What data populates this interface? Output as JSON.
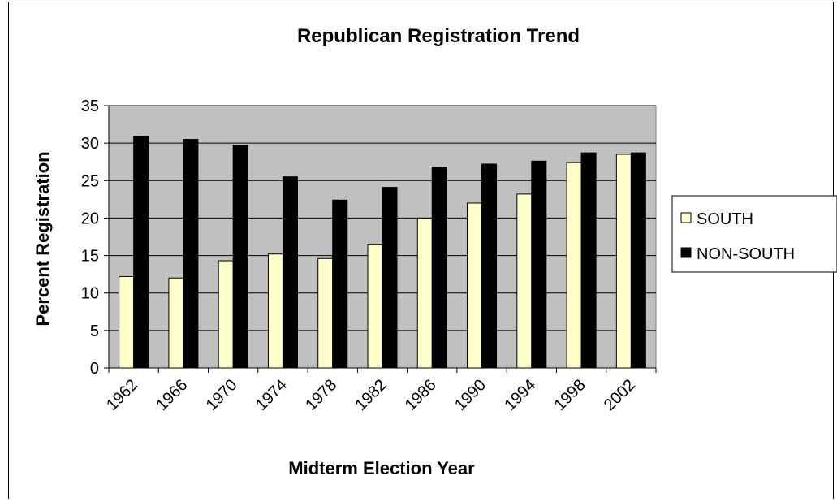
{
  "chart_data": {
    "type": "bar",
    "title": "Republican Registration Trend",
    "xlabel": "Midterm Election Year",
    "ylabel": "Percent Registration",
    "categories": [
      "1962",
      "1966",
      "1970",
      "1974",
      "1978",
      "1982",
      "1986",
      "1990",
      "1994",
      "1998",
      "2002"
    ],
    "series": [
      {
        "name": "SOUTH",
        "color": "#FFFFCC",
        "values": [
          12.2,
          12.0,
          14.3,
          15.2,
          14.6,
          16.5,
          20.0,
          22.0,
          23.2,
          27.4,
          28.5
        ]
      },
      {
        "name": "NON-SOUTH",
        "color": "#000000",
        "values": [
          30.9,
          30.5,
          29.7,
          25.5,
          22.4,
          24.1,
          26.8,
          27.2,
          27.6,
          28.7,
          28.7
        ]
      }
    ],
    "ylim": [
      0,
      35
    ],
    "yticks": [
      0,
      5,
      10,
      15,
      20,
      25,
      30,
      35
    ],
    "plot_background": "#C0C0C0",
    "grid": true,
    "legend_position": "right"
  }
}
